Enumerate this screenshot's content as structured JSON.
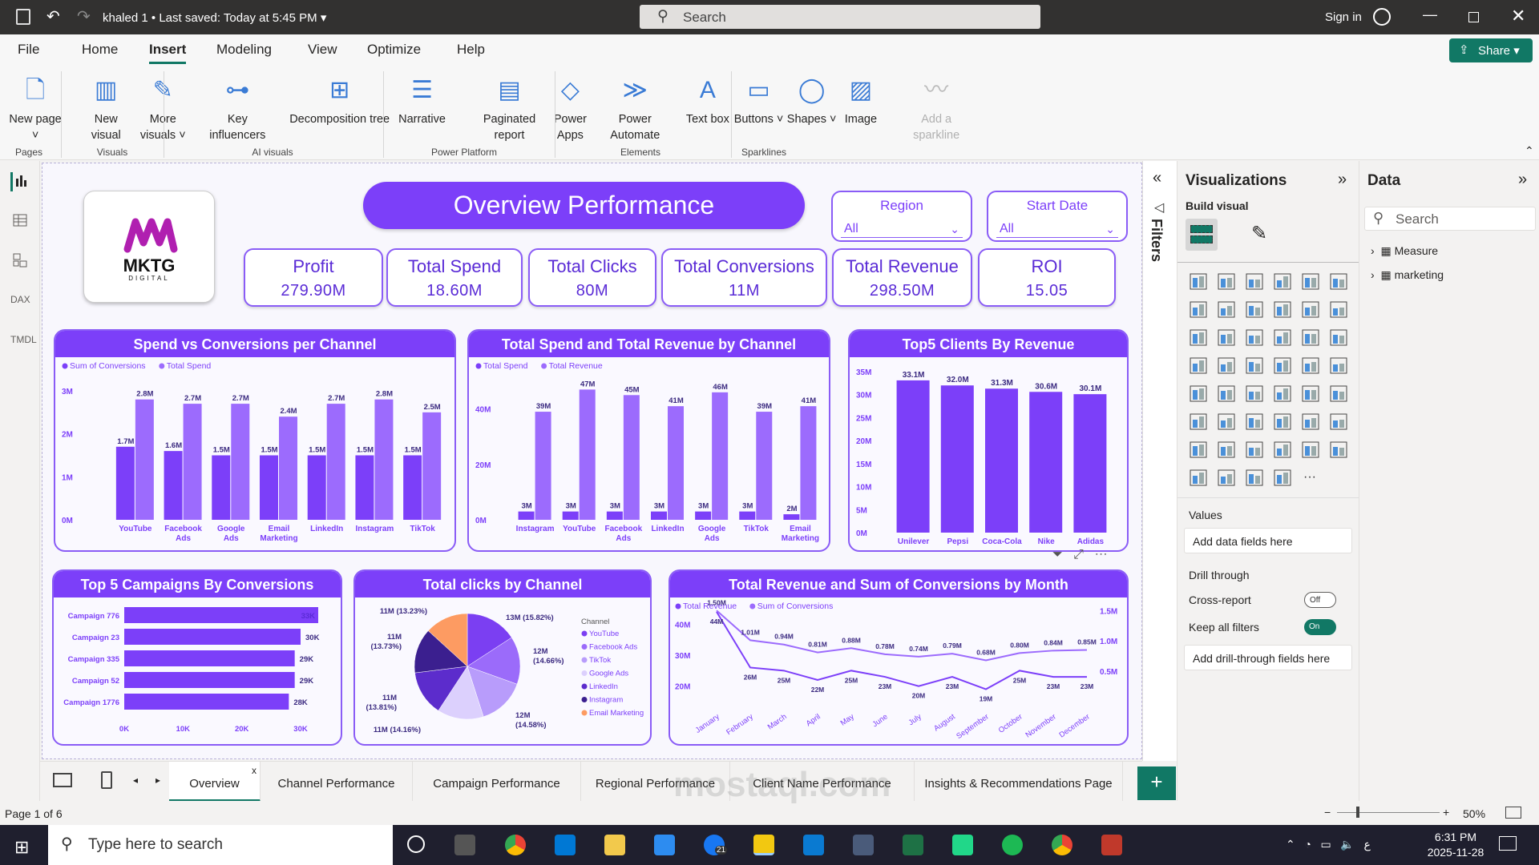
{
  "titlebar": {
    "file_title": "khaled 1",
    "saved": "Last saved: Today at 5:45 PM",
    "search_placeholder": "Search",
    "sign_in": "Sign in"
  },
  "menu": [
    "File",
    "Home",
    "Insert",
    "Modeling",
    "View",
    "Optimize",
    "Help"
  ],
  "active_menu": "Insert",
  "share": "Share",
  "ribbon": {
    "buttons": [
      {
        "label": "New page",
        "icon": "new-page-icon",
        "dropdown": true
      },
      {
        "label": "New visual",
        "icon": "new-visual-icon"
      },
      {
        "label": "More visuals",
        "icon": "more-visuals-icon",
        "dropdown": true
      },
      {
        "label": "Key influencers",
        "icon": "key-influencers-icon"
      },
      {
        "label": "Decomposition tree",
        "icon": "decomposition-tree-icon"
      },
      {
        "label": "Narrative",
        "icon": "narrative-icon"
      },
      {
        "label": "Paginated report",
        "icon": "paginated-report-icon"
      },
      {
        "label": "Power Apps",
        "icon": "power-apps-icon"
      },
      {
        "label": "Power Automate",
        "icon": "power-automate-icon"
      },
      {
        "label": "Text box",
        "icon": "text-box-icon"
      },
      {
        "label": "Buttons",
        "icon": "buttons-icon",
        "dropdown": true
      },
      {
        "label": "Shapes",
        "icon": "shapes-icon",
        "dropdown": true
      },
      {
        "label": "Image",
        "icon": "image-icon"
      },
      {
        "label": "Add a sparkline",
        "icon": "sparkline-icon",
        "disabled": true
      }
    ],
    "groups": [
      "Pages",
      "Visuals",
      "AI visuals",
      "Power Platform",
      "Elements",
      "Sparklines"
    ]
  },
  "report": {
    "logo_text": "MKTG",
    "logo_sub": "DIGITAL",
    "title": "Overview Performance",
    "slicers": [
      {
        "label": "Region",
        "value": "All"
      },
      {
        "label": "Start Date",
        "value": "All"
      }
    ],
    "kpis": [
      {
        "label": "Profit",
        "value": "279.90M"
      },
      {
        "label": "Total Spend",
        "value": "18.60M"
      },
      {
        "label": "Total Clicks",
        "value": "80M"
      },
      {
        "label": "Total Conversions",
        "value": "11M"
      },
      {
        "label": "Total Revenue",
        "value": "298.50M"
      },
      {
        "label": "ROI",
        "value": "15.05"
      }
    ]
  },
  "colors": {
    "primary": "#7c3ff9",
    "secondary": "#9c6bfd",
    "dark_text": "#3b2a80",
    "axis_text": "#7c3ff9"
  },
  "chart_data": [
    {
      "id": "spend-conv",
      "type": "bar",
      "title": "Spend vs Conversions per Channel",
      "categories": [
        "YouTube",
        "Facebook Ads",
        "Google Ads",
        "Email Marketing",
        "LinkedIn",
        "Instagram",
        "TikTok"
      ],
      "series": [
        {
          "name": "Sum of Conversions",
          "values": [
            1.7,
            1.6,
            1.5,
            1.5,
            1.5,
            1.5,
            1.5
          ],
          "labels": [
            "1.7M",
            "1.6M",
            "1.5M",
            "1.5M",
            "1.5M",
            "1.5M",
            "1.5M"
          ]
        },
        {
          "name": "Total Spend",
          "values": [
            2.8,
            2.7,
            2.7,
            2.4,
            2.7,
            2.8,
            2.5
          ],
          "labels": [
            "2.8M",
            "2.7M",
            "2.7M",
            "2.4M",
            "2.7M",
            "2.8M",
            "2.5M"
          ]
        }
      ],
      "yticks": [
        "0M",
        "1M",
        "2M",
        "3M"
      ],
      "ylim": [
        0,
        3
      ],
      "unit": "M",
      "legend": "top-left"
    },
    {
      "id": "spend-rev",
      "type": "bar",
      "title": "Total Spend and Total Revenue by Channel",
      "categories": [
        "Instagram",
        "YouTube",
        "Facebook Ads",
        "LinkedIn",
        "Google Ads",
        "TikTok",
        "Email Marketing"
      ],
      "series": [
        {
          "name": "Total Spend",
          "values": [
            3,
            3,
            3,
            3,
            3,
            3,
            2
          ],
          "labels": [
            "3M",
            "3M",
            "3M",
            "3M",
            "3M",
            "3M",
            "2M"
          ]
        },
        {
          "name": "Total Revenue",
          "values": [
            39,
            47,
            45,
            41,
            46,
            39,
            41
          ],
          "labels": [
            "39M",
            "47M",
            "45M",
            "41M",
            "46M",
            "39M",
            "41M"
          ]
        }
      ],
      "yticks": [
        "0M",
        "20M",
        "40M"
      ],
      "ytick_values": [
        0,
        20,
        40
      ],
      "ylim": [
        0,
        50
      ],
      "legend": "top-left"
    },
    {
      "id": "clients",
      "type": "bar",
      "title": "Top5 Clients By Revenue",
      "categories": [
        "Unilever",
        "Pepsi",
        "Coca-Cola",
        "Nike",
        "Adidas"
      ],
      "series": [
        {
          "values": [
            33.1,
            32.0,
            31.3,
            30.6,
            30.1
          ],
          "labels": [
            "33.1M",
            "32.0M",
            "31.3M",
            "30.6M",
            "30.1M"
          ]
        }
      ],
      "yticks": [
        "0M",
        "5M",
        "10M",
        "15M",
        "20M",
        "25M",
        "30M",
        "35M"
      ],
      "ylim": [
        0,
        35
      ]
    },
    {
      "id": "campaigns",
      "type": "bar",
      "orientation": "horizontal",
      "title": "Top 5 Campaigns By Conversions",
      "categories": [
        "Campaign 776",
        "Campaign 23",
        "Campaign 335",
        "Campaign 52",
        "Campaign 1776"
      ],
      "series": [
        {
          "values": [
            33,
            30,
            29,
            29,
            28
          ],
          "labels": [
            "33K",
            "30K",
            "29K",
            "29K",
            "28K"
          ]
        }
      ],
      "xticks": [
        "0K",
        "10K",
        "20K",
        "30K"
      ],
      "xlim": [
        0,
        33
      ]
    },
    {
      "id": "clicks",
      "type": "pie",
      "title": "Total clicks by Channel",
      "legend_title": "Channel",
      "slices": [
        {
          "name": "YouTube",
          "value": 15.82,
          "label": "13M (15.82%)",
          "color": "#7b3ff2"
        },
        {
          "name": "Facebook Ads",
          "value": 14.66,
          "label": "12M (14.66%)",
          "color": "#9b6bfa"
        },
        {
          "name": "TikTok",
          "value": 14.58,
          "label": "12M (14.58%)",
          "color": "#b89cfb"
        },
        {
          "name": "Google Ads",
          "value": 14.16,
          "label": "11M (14.16%)",
          "color": "#dcd0fd"
        },
        {
          "name": "LinkedIn",
          "value": 13.81,
          "label": "11M (13.81%)",
          "color": "#5c2ccc"
        },
        {
          "name": "Instagram",
          "value": 13.73,
          "label": "11M (13.73%)",
          "color": "#3b1f8f"
        },
        {
          "name": "Email Marketing",
          "value": 13.23,
          "label": "11M (13.23%)",
          "color": "#fd9b62"
        }
      ],
      "legend": "right"
    },
    {
      "id": "monthly",
      "type": "line",
      "title": "Total Revenue and Sum of Conversions by Month",
      "x": [
        "January",
        "February",
        "March",
        "April",
        "May",
        "June",
        "July",
        "August",
        "September",
        "October",
        "November",
        "December"
      ],
      "series": [
        {
          "name": "Total Revenue",
          "axis": "left",
          "values": [
            44,
            26,
            25,
            22,
            25,
            23,
            20,
            23,
            19,
            25,
            23,
            23
          ],
          "labels": [
            "44M",
            "26M",
            "25M",
            "22M",
            "25M",
            "23M",
            "20M",
            "23M",
            "19M",
            "25M",
            "23M",
            "23M"
          ]
        },
        {
          "name": "Sum of Conversions",
          "axis": "right",
          "values": [
            1.5,
            1.01,
            0.94,
            0.81,
            0.88,
            0.78,
            0.74,
            0.79,
            0.68,
            0.8,
            0.84,
            0.85
          ],
          "labels": [
            "1.50M",
            "1.01M",
            "0.94M",
            "0.81M",
            "0.88M",
            "0.78M",
            "0.74M",
            "0.79M",
            "0.68M",
            "0.80M",
            "0.84M",
            "0.85M"
          ]
        }
      ],
      "yticks_left": [
        "20M",
        "30M",
        "40M"
      ],
      "ytick_left_values": [
        20,
        30,
        40
      ],
      "ylim_left": [
        15,
        45
      ],
      "yticks_right": [
        "0.5M",
        "1.0M",
        "1.5M"
      ],
      "ytick_right_values": [
        0.5,
        1.0,
        1.5
      ],
      "ylim_right": [
        0,
        1.53
      ],
      "legend": "top-left"
    }
  ],
  "filters_label": "Filters",
  "viz": {
    "title": "Visualizations",
    "build": "Build visual",
    "values_label": "Values",
    "add_fields": "Add data fields here",
    "drill": "Drill through",
    "cross_report": "Cross-report",
    "cross_state": "Off",
    "keep_filters": "Keep all filters",
    "keep_state": "On",
    "add_drill": "Add drill-through fields here",
    "icons": [
      "stacked-bar",
      "stacked-column",
      "clustered-bar",
      "clustered-column",
      "100-bar",
      "100-column",
      "line",
      "area",
      "stacked-area",
      "100-area",
      "line-column",
      "line-clustered-column",
      "ribbon",
      "waterfall",
      "funnel",
      "scatter",
      "pie",
      "donut",
      "treemap",
      "map",
      "filled-map",
      "shape-map",
      "azure-map",
      "gauge",
      "card-new",
      "card",
      "multi-row-card",
      "kpi",
      "slicer",
      "table",
      "matrix",
      "r-visual",
      "python-visual",
      "key-influencers",
      "decomposition-tree",
      "qa",
      "narrative",
      "goals",
      "paginated",
      "power-apps-filter",
      "smart-narrative-filter",
      "slicer-filter",
      "image",
      "arcgis",
      "power-apps",
      "power-automate",
      "more"
    ]
  },
  "data_pane": {
    "title": "Data",
    "search_placeholder": "Search",
    "tables": [
      {
        "name": "Measure",
        "icon": "calculator-icon"
      },
      {
        "name": "marketing",
        "icon": "table-icon"
      }
    ]
  },
  "pages": [
    "Overview",
    "Channel Performance",
    "Campaign Performance",
    "Regional Performance",
    "Client Name Performance",
    "Insights & Recommendations Page"
  ],
  "active_page": "Overview",
  "status": {
    "page": "Page 1 of 6",
    "zoom": "50%"
  },
  "taskbar": {
    "search": "Type here to search",
    "time": "6:31 PM",
    "date": "2025-11-28",
    "badge": "21"
  },
  "watermark": "mostaql.com"
}
